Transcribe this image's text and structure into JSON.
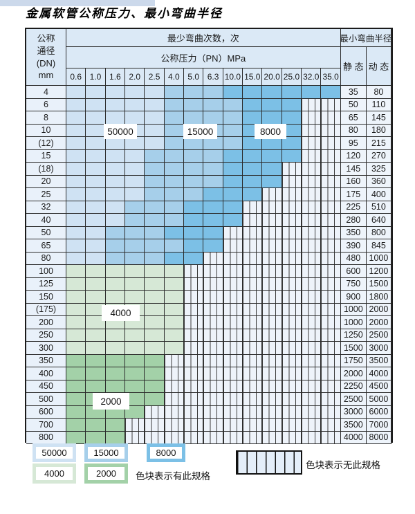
{
  "page": {
    "title": "金属软管公称压力、最小弯曲半径"
  },
  "colors": {
    "b1": "#cfe2f3",
    "b2": "#a6cfea",
    "b3": "#7cc0e6",
    "g1": "#d6e8d6",
    "g2": "#a3d1a8",
    "hatch_bg": "#eef3fa",
    "header_bg": "#dbe9f6",
    "grid_line": "#2b2b2b"
  },
  "cycles_by_code": {
    "b1": 50000,
    "b2": 15000,
    "b3": 8000,
    "g1": 4000,
    "g2": 2000,
    "x": null
  },
  "table": {
    "corner": {
      "line1": "公称",
      "line2": "通径",
      "line3": "(DN)",
      "line4": "mm"
    },
    "top_header": "最少弯曲次数，次",
    "pressure_header": "公称压力（PN）MPa",
    "pressure_values": [
      "0.6",
      "1.0",
      "1.6",
      "2.0",
      "2.5",
      "4.0",
      "5.0",
      "6.3",
      "10.0",
      "15.0",
      "20.0",
      "25.0",
      "32.0",
      "35.0"
    ],
    "radius_header": "最小弯曲半径",
    "static_label": "静 态",
    "dynamic_label": "动 态",
    "overlays": [
      {
        "text": "50000"
      },
      {
        "text": "15000"
      },
      {
        "text": "8000"
      },
      {
        "text": "4000"
      },
      {
        "text": "2000"
      }
    ],
    "rows": [
      {
        "dn": "4",
        "cells": [
          "b1",
          "b1",
          "b1",
          "b1",
          "b1",
          "b2",
          "b2",
          "b2",
          "b3",
          "b3",
          "b3",
          "b3",
          "b3",
          "b3"
        ],
        "static": "35",
        "dynamic": "80"
      },
      {
        "dn": "6",
        "cells": [
          "b1",
          "b1",
          "b1",
          "b1",
          "b1",
          "b2",
          "b2",
          "b2",
          "b2",
          "b3",
          "b3",
          "b3",
          "x",
          "x"
        ],
        "static": "50",
        "dynamic": "110"
      },
      {
        "dn": "8",
        "cells": [
          "b1",
          "b1",
          "b1",
          "b1",
          "b1",
          "b2",
          "b2",
          "b2",
          "b2",
          "b3",
          "b3",
          "b3",
          "x",
          "x"
        ],
        "static": "65",
        "dynamic": "145"
      },
      {
        "dn": "10",
        "cells": [
          "b1",
          "b1",
          "b1",
          "b1",
          "b1",
          "b2",
          "b2",
          "b2",
          "b2",
          "b3",
          "b3",
          "b3",
          "x",
          "x"
        ],
        "static": "80",
        "dynamic": "180"
      },
      {
        "dn": "(12)",
        "cells": [
          "b1",
          "b1",
          "b1",
          "b1",
          "b1",
          "b2",
          "b2",
          "b2",
          "b2",
          "b3",
          "b3",
          "b3",
          "x",
          "x"
        ],
        "static": "95",
        "dynamic": "215"
      },
      {
        "dn": "15",
        "cells": [
          "b1",
          "b1",
          "b1",
          "b1",
          "b2",
          "b2",
          "b2",
          "b2",
          "b3",
          "b3",
          "b3",
          "b3",
          "x",
          "x"
        ],
        "static": "120",
        "dynamic": "270"
      },
      {
        "dn": "(18)",
        "cells": [
          "b1",
          "b1",
          "b1",
          "b1",
          "b2",
          "b2",
          "b2",
          "b2",
          "b3",
          "b3",
          "b3",
          "x",
          "x",
          "x"
        ],
        "static": "145",
        "dynamic": "325"
      },
      {
        "dn": "20",
        "cells": [
          "b1",
          "b1",
          "b1",
          "b1",
          "b2",
          "b2",
          "b2",
          "b2",
          "b3",
          "b3",
          "b3",
          "x",
          "x",
          "x"
        ],
        "static": "160",
        "dynamic": "360"
      },
      {
        "dn": "25",
        "cells": [
          "b1",
          "b1",
          "b1",
          "b1",
          "b2",
          "b2",
          "b2",
          "b3",
          "b3",
          "b3",
          "x",
          "x",
          "x",
          "x"
        ],
        "static": "175",
        "dynamic": "400"
      },
      {
        "dn": "32",
        "cells": [
          "b1",
          "b1",
          "b1",
          "b2",
          "b2",
          "b2",
          "b3",
          "b3",
          "b3",
          "x",
          "x",
          "x",
          "x",
          "x"
        ],
        "static": "225",
        "dynamic": "510"
      },
      {
        "dn": "40",
        "cells": [
          "b1",
          "b1",
          "b1",
          "b2",
          "b2",
          "b2",
          "b3",
          "b3",
          "b3",
          "x",
          "x",
          "x",
          "x",
          "x"
        ],
        "static": "280",
        "dynamic": "640"
      },
      {
        "dn": "50",
        "cells": [
          "b1",
          "b1",
          "b2",
          "b2",
          "b2",
          "b3",
          "b3",
          "b3",
          "x",
          "x",
          "x",
          "x",
          "x",
          "x"
        ],
        "static": "350",
        "dynamic": "800"
      },
      {
        "dn": "65",
        "cells": [
          "b1",
          "b1",
          "b2",
          "b2",
          "b2",
          "b2",
          "b3",
          "b3",
          "x",
          "x",
          "x",
          "x",
          "x",
          "x"
        ],
        "static": "390",
        "dynamic": "845"
      },
      {
        "dn": "80",
        "cells": [
          "b1",
          "b1",
          "b2",
          "b2",
          "b2",
          "b3",
          "b3",
          "x",
          "x",
          "x",
          "x",
          "x",
          "x",
          "x"
        ],
        "static": "480",
        "dynamic": "1000"
      },
      {
        "dn": "100",
        "cells": [
          "g1",
          "g1",
          "g1",
          "g1",
          "g1",
          "g1",
          "x",
          "x",
          "x",
          "x",
          "x",
          "x",
          "x",
          "x"
        ],
        "static": "600",
        "dynamic": "1200"
      },
      {
        "dn": "125",
        "cells": [
          "g1",
          "g1",
          "g1",
          "g1",
          "g1",
          "g1",
          "x",
          "x",
          "x",
          "x",
          "x",
          "x",
          "x",
          "x"
        ],
        "static": "750",
        "dynamic": "1500"
      },
      {
        "dn": "150",
        "cells": [
          "g1",
          "g1",
          "g1",
          "g1",
          "g1",
          "g1",
          "x",
          "x",
          "x",
          "x",
          "x",
          "x",
          "x",
          "x"
        ],
        "static": "900",
        "dynamic": "1800"
      },
      {
        "dn": "(175)",
        "cells": [
          "g1",
          "g1",
          "g1",
          "g1",
          "g1",
          "g1",
          "x",
          "x",
          "x",
          "x",
          "x",
          "x",
          "x",
          "x"
        ],
        "static": "1000",
        "dynamic": "2000"
      },
      {
        "dn": "200",
        "cells": [
          "g1",
          "g1",
          "g1",
          "g1",
          "g1",
          "g1",
          "x",
          "x",
          "x",
          "x",
          "x",
          "x",
          "x",
          "x"
        ],
        "static": "1000",
        "dynamic": "2000"
      },
      {
        "dn": "250",
        "cells": [
          "g1",
          "g1",
          "g1",
          "g1",
          "g1",
          "g1",
          "x",
          "x",
          "x",
          "x",
          "x",
          "x",
          "x",
          "x"
        ],
        "static": "1250",
        "dynamic": "2500"
      },
      {
        "dn": "300",
        "cells": [
          "g1",
          "g1",
          "g1",
          "g1",
          "g1",
          "g1",
          "x",
          "x",
          "x",
          "x",
          "x",
          "x",
          "x",
          "x"
        ],
        "static": "1500",
        "dynamic": "3000"
      },
      {
        "dn": "350",
        "cells": [
          "g2",
          "g2",
          "g2",
          "g2",
          "g2",
          "x",
          "x",
          "x",
          "x",
          "x",
          "x",
          "x",
          "x",
          "x"
        ],
        "static": "1750",
        "dynamic": "3500"
      },
      {
        "dn": "400",
        "cells": [
          "g2",
          "g2",
          "g2",
          "g2",
          "g2",
          "x",
          "x",
          "x",
          "x",
          "x",
          "x",
          "x",
          "x",
          "x"
        ],
        "static": "2000",
        "dynamic": "4000"
      },
      {
        "dn": "450",
        "cells": [
          "g2",
          "g2",
          "g2",
          "g2",
          "g2",
          "x",
          "x",
          "x",
          "x",
          "x",
          "x",
          "x",
          "x",
          "x"
        ],
        "static": "2250",
        "dynamic": "4500"
      },
      {
        "dn": "500",
        "cells": [
          "g2",
          "g2",
          "g2",
          "g2",
          "g2",
          "x",
          "x",
          "x",
          "x",
          "x",
          "x",
          "x",
          "x",
          "x"
        ],
        "static": "2500",
        "dynamic": "5000"
      },
      {
        "dn": "600",
        "cells": [
          "g2",
          "g2",
          "g2",
          "g2",
          "x",
          "x",
          "x",
          "x",
          "x",
          "x",
          "x",
          "x",
          "x",
          "x"
        ],
        "static": "3000",
        "dynamic": "6000"
      },
      {
        "dn": "700",
        "cells": [
          "g2",
          "g2",
          "g2",
          "x",
          "x",
          "x",
          "x",
          "x",
          "x",
          "x",
          "x",
          "x",
          "x",
          "x"
        ],
        "static": "3500",
        "dynamic": "7000"
      },
      {
        "dn": "800",
        "cells": [
          "g2",
          "g2",
          "g2",
          "x",
          "x",
          "x",
          "x",
          "x",
          "x",
          "x",
          "x",
          "x",
          "x",
          "x"
        ],
        "static": "4000",
        "dynamic": "8000"
      }
    ]
  },
  "legend": {
    "items": [
      {
        "text": "50000",
        "code": "b1"
      },
      {
        "text": "15000",
        "code": "b2"
      },
      {
        "text": "8000",
        "code": "b3"
      },
      {
        "text": "4000",
        "code": "g1"
      },
      {
        "text": "2000",
        "code": "g2"
      }
    ],
    "has_spec_text": "色块表示有此规格",
    "no_spec_text": "色块表示无此规格"
  }
}
